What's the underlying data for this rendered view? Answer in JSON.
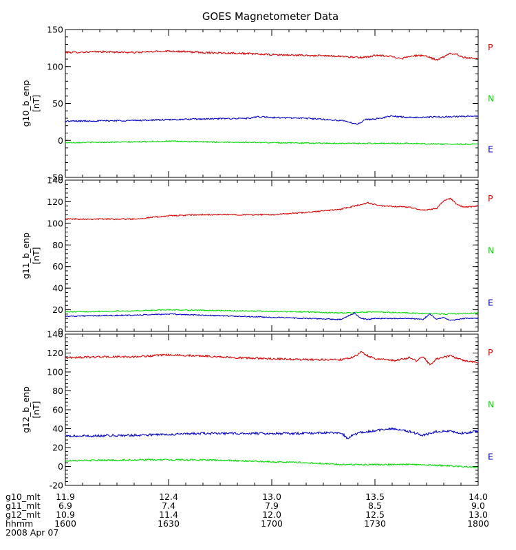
{
  "title": "GOES Magnetometer Data",
  "date_label": "2008 Apr 07",
  "colors": {
    "P": "#dd0000",
    "N": "#00dd00",
    "E": "#0000cc",
    "axis": "#000000"
  },
  "legend_labels": [
    "P",
    "N",
    "E"
  ],
  "time_axis": {
    "row_labels": [
      "g10_mlt",
      "g11_mlt",
      "g12_mlt",
      "hhmm"
    ],
    "rows": [
      [
        "11.9",
        "12.4",
        "13.0",
        "13.5",
        "14.0"
      ],
      [
        "6.9",
        "7.4",
        "7.9",
        "8.5",
        "9.0"
      ],
      [
        "10.9",
        "11.4",
        "12.0",
        "12.5",
        "13.0"
      ],
      [
        "1600",
        "1630",
        "1700",
        "1730",
        "1800"
      ]
    ]
  },
  "chart_data": [
    {
      "type": "line",
      "ylabel": "g10_b_enp",
      "yunit": "[nT]",
      "ylim": [
        -50,
        150
      ],
      "yticks": [
        150,
        100,
        50,
        0,
        -50
      ],
      "x_unit": "minutes after 1600",
      "series": [
        {
          "name": "P",
          "noise": 1.2,
          "x": [
            0,
            10,
            20,
            25,
            30,
            40,
            50,
            60,
            70,
            80,
            85,
            88,
            90,
            94,
            98,
            100,
            104,
            108,
            110,
            112,
            114,
            116,
            120
          ],
          "values": [
            119,
            120,
            119,
            120,
            121,
            119,
            118,
            116,
            115,
            114,
            112,
            113,
            115,
            114,
            111,
            114,
            115,
            109,
            113,
            118,
            116,
            112,
            111
          ]
        },
        {
          "name": "N",
          "noise": 0.8,
          "x": [
            0,
            20,
            30,
            40,
            60,
            80,
            90,
            100,
            110,
            120
          ],
          "values": [
            -3,
            -2,
            -1,
            -2,
            -3,
            -4,
            -4,
            -4,
            -5,
            -5
          ]
        },
        {
          "name": "E",
          "noise": 1.0,
          "x": [
            0,
            20,
            40,
            54,
            56,
            60,
            70,
            80,
            85,
            87,
            90,
            95,
            100,
            110,
            120
          ],
          "values": [
            26,
            27,
            29,
            30,
            32,
            31,
            30,
            27,
            22,
            28,
            29,
            33,
            31,
            32,
            33
          ]
        }
      ]
    },
    {
      "type": "line",
      "ylabel": "g11_b_enp",
      "yunit": "[nT]",
      "ylim": [
        0,
        140
      ],
      "yticks": [
        140,
        120,
        100,
        80,
        60,
        40,
        20,
        0
      ],
      "x_unit": "minutes after 1600",
      "series": [
        {
          "name": "P",
          "noise": 0.6,
          "x": [
            0,
            10,
            20,
            30,
            40,
            50,
            60,
            70,
            80,
            84,
            88,
            92,
            100,
            104,
            108,
            110,
            112,
            114,
            116,
            120
          ],
          "values": [
            104,
            104,
            104,
            107,
            108,
            108,
            108,
            110,
            113,
            116,
            119,
            116,
            115,
            112,
            114,
            121,
            123,
            117,
            115,
            116
          ]
        },
        {
          "name": "N",
          "noise": 0.5,
          "x": [
            0,
            20,
            30,
            50,
            70,
            80,
            90,
            100,
            110,
            120
          ],
          "values": [
            18,
            19,
            20,
            19,
            18,
            17,
            18,
            17,
            16,
            17
          ]
        },
        {
          "name": "E",
          "noise": 0.5,
          "x": [
            0,
            20,
            30,
            40,
            50,
            60,
            70,
            80,
            84,
            86,
            88,
            90,
            100,
            104,
            106,
            108,
            110,
            112,
            116,
            120
          ],
          "values": [
            14,
            15,
            16,
            15,
            14,
            13,
            12,
            11,
            17,
            12,
            11,
            12,
            12,
            11,
            16,
            11,
            13,
            10,
            12,
            12
          ]
        }
      ]
    },
    {
      "type": "line",
      "ylabel": "g12_b_enp",
      "yunit": "[nT]",
      "ylim": [
        -20,
        140
      ],
      "yticks": [
        140,
        120,
        100,
        80,
        60,
        40,
        20,
        0,
        -20
      ],
      "x_unit": "minutes after 1600",
      "series": [
        {
          "name": "P",
          "noise": 1.0,
          "x": [
            0,
            10,
            20,
            30,
            40,
            50,
            60,
            70,
            80,
            84,
            86,
            88,
            90,
            96,
            100,
            102,
            104,
            106,
            108,
            112,
            116,
            120
          ],
          "values": [
            115,
            116,
            116,
            118,
            117,
            115,
            114,
            113,
            113,
            116,
            121,
            117,
            114,
            112,
            115,
            112,
            116,
            108,
            114,
            117,
            112,
            110
          ]
        },
        {
          "name": "N",
          "noise": 0.8,
          "x": [
            0,
            20,
            30,
            40,
            50,
            60,
            70,
            80,
            90,
            100,
            110,
            120
          ],
          "values": [
            6,
            7,
            7,
            7,
            6,
            5,
            4,
            2,
            2,
            2,
            1,
            -1
          ]
        },
        {
          "name": "E",
          "noise": 1.2,
          "x": [
            0,
            20,
            40,
            60,
            70,
            80,
            82,
            84,
            86,
            90,
            95,
            100,
            104,
            108,
            112,
            116,
            120
          ],
          "values": [
            32,
            33,
            35,
            35,
            35,
            36,
            30,
            34,
            36,
            38,
            40,
            37,
            33,
            37,
            37,
            35,
            38
          ]
        }
      ]
    }
  ]
}
